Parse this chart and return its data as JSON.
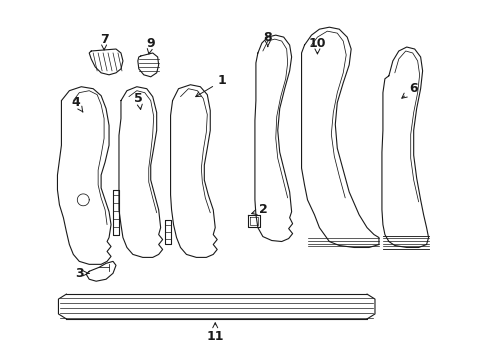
{
  "bg_color": "#ffffff",
  "line_color": "#1a1a1a",
  "figsize": [
    4.89,
    3.6
  ],
  "dpi": 100,
  "text_fontsize": 9,
  "arrow_lw": 0.7,
  "part_lw": 0.8
}
